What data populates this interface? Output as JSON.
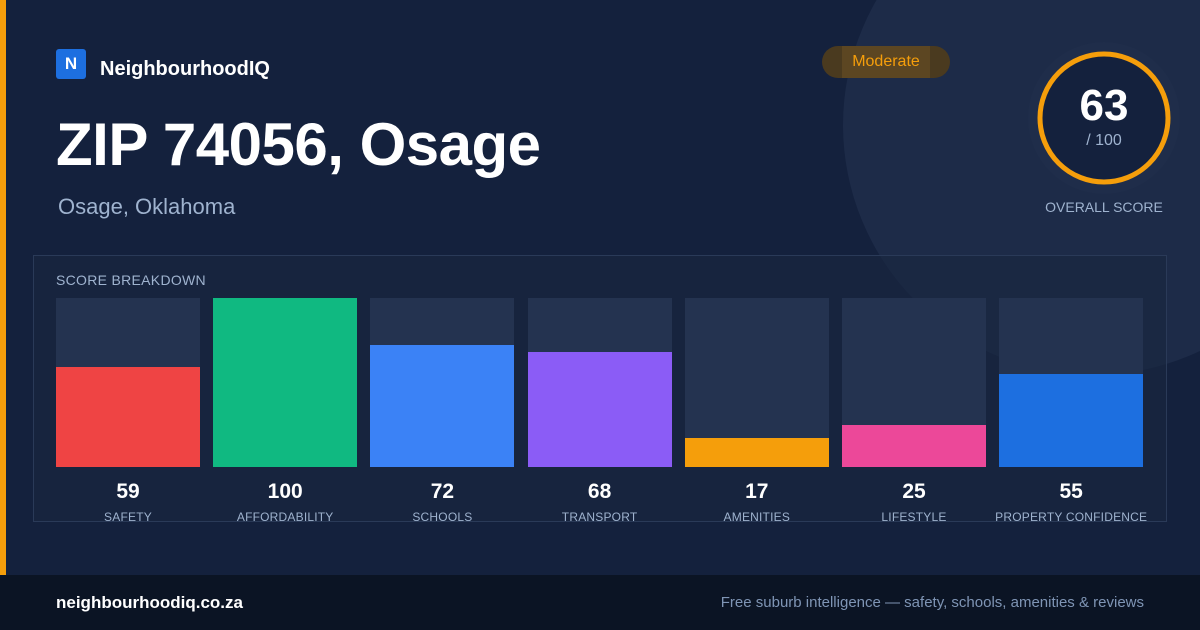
{
  "brand": {
    "logo_letter": "N",
    "name": "NeighbourhoodIQ"
  },
  "header": {
    "title": "ZIP 74056, Osage",
    "subtitle": "Osage, Oklahoma"
  },
  "badge": {
    "label": "Moderate"
  },
  "overall": {
    "score": "63",
    "max_label": "/ 100",
    "label": "OVERALL SCORE",
    "value": 63,
    "max": 100,
    "ring_color": "#f59e0b"
  },
  "breakdown": {
    "title": "SCORE BREAKDOWN"
  },
  "chart_data": {
    "type": "bar",
    "categories": [
      "SAFETY",
      "AFFORDABILITY",
      "SCHOOLS",
      "TRANSPORT",
      "AMENITIES",
      "LIFESTYLE",
      "PROPERTY CONFIDENCE"
    ],
    "values": [
      59,
      100,
      72,
      68,
      17,
      25,
      55
    ],
    "colors": [
      "#ef4444",
      "#10b981",
      "#3b82f6",
      "#8b5cf6",
      "#f59e0b",
      "#ec4899",
      "#1d6fe0"
    ],
    "ylim": [
      0,
      100
    ],
    "title": "SCORE BREAKDOWN"
  },
  "footer": {
    "url": "neighbourhoodiq.co.za",
    "tagline": "Free suburb intelligence — safety, schools, amenities & reviews"
  }
}
